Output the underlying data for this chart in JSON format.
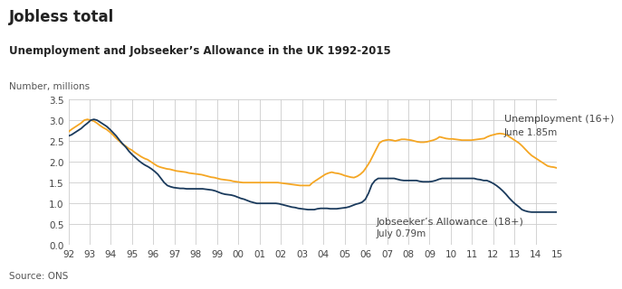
{
  "title": "Jobless total",
  "subtitle": "Unemployment and Jobseeker’s Allowance in the UK 1992-2015",
  "ylabel": "Number, millions",
  "source": "Source: ONS",
  "ylim": [
    0,
    3.5
  ],
  "yticks": [
    0,
    0.5,
    1.0,
    1.5,
    2.0,
    2.5,
    3.0,
    3.5
  ],
  "xtick_labels": [
    "92",
    "93",
    "94",
    "95",
    "96",
    "97",
    "98",
    "99",
    "00",
    "01",
    "02",
    "03",
    "04",
    "05",
    "06",
    "07",
    "08",
    "09",
    "10",
    "11",
    "12",
    "13",
    "14",
    "15"
  ],
  "unemployment_color": "#f5a623",
  "jsa_color": "#1a3a5c",
  "background_color": "#ffffff",
  "grid_color": "#cccccc",
  "unemployment_label": "Unemployment (16+)",
  "unemployment_annotation": "June 1.85m",
  "jsa_label": "Jobseeker’s Allowance  (18+)",
  "jsa_annotation": "July 0.79m",
  "unemployment": [
    2.72,
    2.78,
    2.83,
    2.88,
    2.93,
    3.0,
    3.02,
    3.0,
    2.98,
    2.93,
    2.87,
    2.82,
    2.78,
    2.72,
    2.65,
    2.57,
    2.5,
    2.43,
    2.38,
    2.32,
    2.28,
    2.22,
    2.17,
    2.12,
    2.08,
    2.05,
    2.0,
    1.95,
    1.9,
    1.87,
    1.85,
    1.83,
    1.82,
    1.8,
    1.78,
    1.77,
    1.76,
    1.75,
    1.73,
    1.72,
    1.71,
    1.7,
    1.69,
    1.67,
    1.65,
    1.63,
    1.62,
    1.6,
    1.58,
    1.57,
    1.56,
    1.55,
    1.53,
    1.52,
    1.51,
    1.5,
    1.5,
    1.5,
    1.5,
    1.5,
    1.5,
    1.5,
    1.5,
    1.5,
    1.5,
    1.5,
    1.5,
    1.49,
    1.48,
    1.47,
    1.46,
    1.45,
    1.44,
    1.43,
    1.43,
    1.43,
    1.43,
    1.5,
    1.55,
    1.6,
    1.65,
    1.7,
    1.73,
    1.75,
    1.73,
    1.72,
    1.7,
    1.67,
    1.65,
    1.63,
    1.62,
    1.65,
    1.7,
    1.77,
    1.88,
    2.0,
    2.15,
    2.3,
    2.45,
    2.5,
    2.52,
    2.53,
    2.52,
    2.5,
    2.52,
    2.54,
    2.54,
    2.53,
    2.52,
    2.5,
    2.48,
    2.47,
    2.47,
    2.48,
    2.5,
    2.52,
    2.55,
    2.6,
    2.58,
    2.56,
    2.55,
    2.55,
    2.54,
    2.53,
    2.52,
    2.52,
    2.52,
    2.52,
    2.53,
    2.54,
    2.55,
    2.56,
    2.6,
    2.63,
    2.65,
    2.67,
    2.68,
    2.67,
    2.65,
    2.6,
    2.55,
    2.5,
    2.45,
    2.38,
    2.3,
    2.22,
    2.15,
    2.1,
    2.05,
    2.0,
    1.95,
    1.9,
    1.88,
    1.87,
    1.85
  ],
  "jsa": [
    2.62,
    2.65,
    2.7,
    2.75,
    2.8,
    2.87,
    2.93,
    3.0,
    3.02,
    3.0,
    2.95,
    2.9,
    2.85,
    2.78,
    2.7,
    2.62,
    2.52,
    2.43,
    2.35,
    2.25,
    2.17,
    2.1,
    2.03,
    1.97,
    1.92,
    1.88,
    1.83,
    1.77,
    1.7,
    1.6,
    1.5,
    1.43,
    1.4,
    1.38,
    1.37,
    1.36,
    1.36,
    1.35,
    1.35,
    1.35,
    1.35,
    1.35,
    1.35,
    1.34,
    1.33,
    1.32,
    1.3,
    1.27,
    1.24,
    1.22,
    1.21,
    1.2,
    1.18,
    1.15,
    1.12,
    1.1,
    1.07,
    1.04,
    1.02,
    1.0,
    1.0,
    1.0,
    1.0,
    1.0,
    1.0,
    1.0,
    0.99,
    0.97,
    0.95,
    0.93,
    0.91,
    0.9,
    0.88,
    0.87,
    0.86,
    0.85,
    0.85,
    0.85,
    0.87,
    0.88,
    0.88,
    0.88,
    0.87,
    0.87,
    0.87,
    0.88,
    0.89,
    0.9,
    0.92,
    0.95,
    0.98,
    1.0,
    1.03,
    1.1,
    1.25,
    1.45,
    1.55,
    1.6,
    1.6,
    1.6,
    1.6,
    1.6,
    1.6,
    1.58,
    1.56,
    1.55,
    1.55,
    1.55,
    1.55,
    1.55,
    1.53,
    1.52,
    1.52,
    1.52,
    1.53,
    1.55,
    1.58,
    1.6,
    1.6,
    1.6,
    1.6,
    1.6,
    1.6,
    1.6,
    1.6,
    1.6,
    1.6,
    1.6,
    1.58,
    1.57,
    1.55,
    1.55,
    1.52,
    1.48,
    1.43,
    1.37,
    1.3,
    1.22,
    1.13,
    1.05,
    0.98,
    0.92,
    0.85,
    0.82,
    0.8,
    0.79,
    0.79,
    0.79,
    0.79,
    0.79,
    0.79,
    0.79,
    0.79,
    0.79
  ]
}
